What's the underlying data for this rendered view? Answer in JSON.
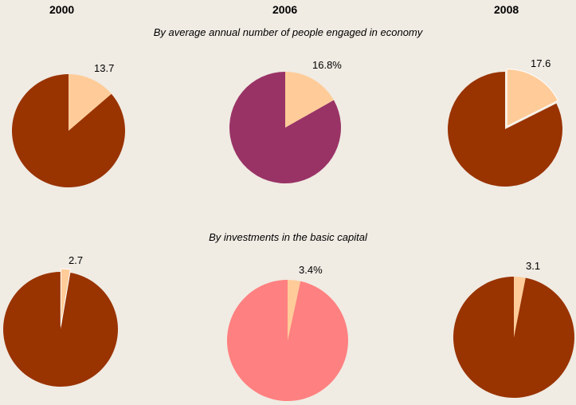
{
  "years": [
    "2000",
    "2006",
    "2008"
  ],
  "sections": [
    {
      "title": "By average annual number of people engaged in economy"
    },
    {
      "title": "By investments in the basic capital"
    }
  ],
  "colors": {
    "highlight": "#ffcc99",
    "rest_dark": "#993300",
    "rest_purple": "#993366",
    "rest_pink": "#ff8080"
  },
  "chart_data": [
    {
      "type": "pie",
      "section": "By average annual number of people engaged in economy",
      "year": "2000",
      "value": 13.7,
      "label": "13.7",
      "rest_color": "#993300",
      "exploded": false
    },
    {
      "type": "pie",
      "section": "By average annual number of people engaged in economy",
      "year": "2006",
      "value": 16.8,
      "label": "16.8%",
      "rest_color": "#993366",
      "exploded": false
    },
    {
      "type": "pie",
      "section": "By average annual number of people engaged in economy",
      "year": "2008",
      "value": 17.6,
      "label": "17.6",
      "rest_color": "#993300",
      "exploded": true
    },
    {
      "type": "pie",
      "section": "By investments in the basic capital",
      "year": "2000",
      "value": 2.7,
      "label": "2.7",
      "rest_color": "#993300",
      "exploded": true
    },
    {
      "type": "pie",
      "section": "By investments in the basic capital",
      "year": "2006",
      "value": 3.4,
      "label": "3.4%",
      "rest_color": "#ff8080",
      "exploded": false
    },
    {
      "type": "pie",
      "section": "By investments in the basic capital",
      "year": "2008",
      "value": 3.1,
      "label": "3.1",
      "rest_color": "#993300",
      "exploded": false
    }
  ]
}
